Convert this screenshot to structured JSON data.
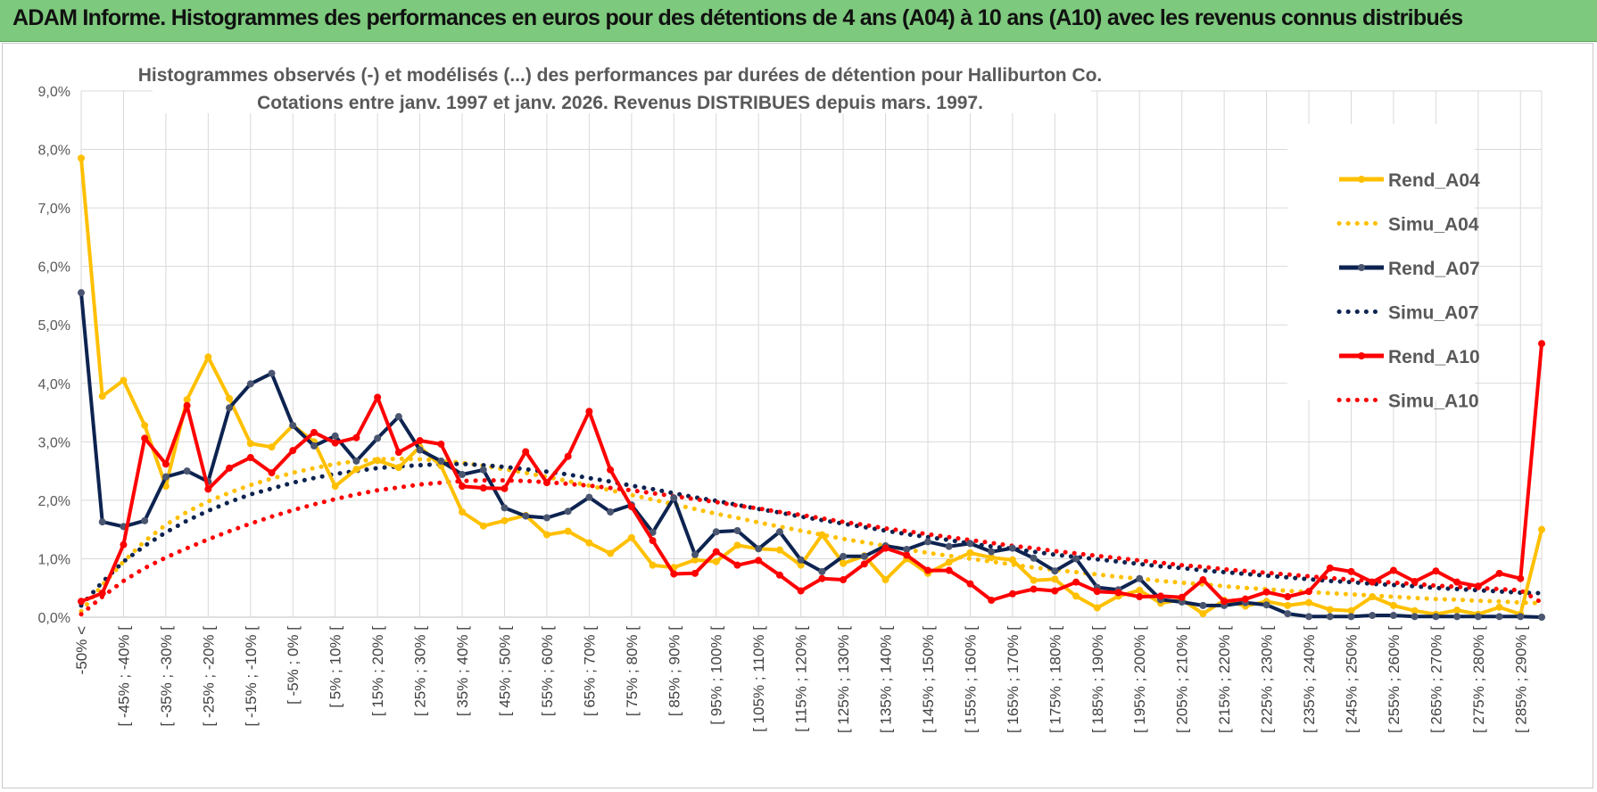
{
  "banner": {
    "title": "ADAM Informe. Histogrammes des performances en euros pour des détentions de 4 ans (A04) à 10 ans (A10) avec les revenus connus distribués"
  },
  "chart_data": {
    "type": "line",
    "title": "Histogrammes observés (-) et modélisés (...) des performances par durées de détention pour Halliburton Co.",
    "subtitle": "Cotations entre janv. 1997 et janv. 2026. Revenus DISTRIBUES depuis mars. 1997.",
    "xlabel": "",
    "ylabel": "",
    "ylim": [
      0,
      9
    ],
    "yticks": [
      "0,0%",
      "1,0%",
      "2,0%",
      "3,0%",
      "4,0%",
      "5,0%",
      "6,0%",
      "7,0%",
      "8,0%",
      "9,0%"
    ],
    "grid": true,
    "legend_position": "right",
    "category_labels": [
      "-50% <",
      "[ -45% ; -40% [",
      "[ -35% ; -30% [",
      "[ -25% ; -20% [",
      "[ -15% ; -10% [",
      "[ -5% ; 0% [",
      "[ 5% ; 10% [",
      "[ 15% ; 20% [",
      "[ 25% ; 30% [",
      "[ 35% ; 40% [",
      "[ 45% ; 50% [",
      "[ 55% ; 60% [",
      "[ 65% ; 70% [",
      "[ 75% ; 80% [",
      "[ 85% ; 90% [",
      "[ 95% ; 100% [",
      "[ 105% ; 110% [",
      "[ 115% ; 120% [",
      "[ 125% ; 130% [",
      "[ 135% ; 140% [",
      "[ 145% ; 150% [",
      "[ 155% ; 160% [",
      "[ 165% ; 170% [",
      "[ 175% ; 180% [",
      "[ 185% ; 190% [",
      "[ 195% ; 200% [",
      "[ 205% ; 210% [",
      "[ 215% ; 220% [",
      "[ 225% ; 230% [",
      "[ 235% ; 240% [",
      "[ 245% ; 250% [",
      "[ 255% ; 260% [",
      "[ 265% ; 270% [",
      "[ 275% ; 280% [",
      "[ 285% ; 290% ["
    ],
    "series": [
      {
        "name": "Rend_A04",
        "color": "#ffc000",
        "style": "solid",
        "values": [
          7.85,
          3.78,
          4.05,
          3.28,
          2.24,
          3.72,
          4.45,
          3.74,
          2.97,
          2.91,
          3.28,
          3.0,
          2.24,
          2.53,
          2.68,
          2.56,
          2.91,
          2.59,
          1.8,
          1.56,
          1.65,
          1.74,
          1.41,
          1.47,
          1.27,
          1.09,
          1.36,
          0.89,
          0.85,
          0.98,
          0.95,
          1.23,
          1.17,
          1.15,
          0.89,
          1.41,
          0.92,
          1.05,
          0.64,
          1.0,
          0.75,
          0.94,
          1.1,
          1.02,
          0.98,
          0.63,
          0.65,
          0.36,
          0.16,
          0.36,
          0.46,
          0.24,
          0.3,
          0.06,
          0.29,
          0.19,
          0.27,
          0.2,
          0.25,
          0.13,
          0.11,
          0.35,
          0.2,
          0.11,
          0.05,
          0.12,
          0.05,
          0.17,
          0.05,
          1.5
        ]
      },
      {
        "name": "Simu_A04",
        "color": "#ffc000",
        "style": "dotted",
        "values": [
          0.1,
          0.55,
          0.95,
          1.3,
          1.58,
          1.8,
          1.98,
          2.13,
          2.26,
          2.37,
          2.47,
          2.55,
          2.62,
          2.67,
          2.7,
          2.71,
          2.7,
          2.68,
          2.64,
          2.59,
          2.53,
          2.47,
          2.4,
          2.33,
          2.25,
          2.17,
          2.09,
          2.01,
          1.93,
          1.85,
          1.77,
          1.7,
          1.62,
          1.55,
          1.48,
          1.41,
          1.34,
          1.28,
          1.22,
          1.16,
          1.1,
          1.05,
          1.0,
          0.95,
          0.9,
          0.85,
          0.81,
          0.77,
          0.73,
          0.69,
          0.66,
          0.62,
          0.59,
          0.56,
          0.53,
          0.5,
          0.48,
          0.45,
          0.43,
          0.41,
          0.39,
          0.37,
          0.35,
          0.33,
          0.31,
          0.3,
          0.28,
          0.27,
          0.25,
          0.24
        ]
      },
      {
        "name": "Rend_A07",
        "color": "#0d2350",
        "style": "solid",
        "values": [
          5.55,
          1.63,
          1.55,
          1.65,
          2.4,
          2.5,
          2.32,
          3.58,
          3.99,
          4.17,
          3.28,
          2.93,
          3.1,
          2.67,
          3.06,
          3.43,
          2.86,
          2.67,
          2.44,
          2.52,
          1.87,
          1.73,
          1.7,
          1.81,
          2.05,
          1.8,
          1.92,
          1.45,
          2.04,
          1.07,
          1.46,
          1.48,
          1.17,
          1.46,
          0.98,
          0.78,
          1.04,
          1.04,
          1.22,
          1.16,
          1.29,
          1.21,
          1.26,
          1.12,
          1.18,
          1.01,
          0.79,
          1.0,
          0.51,
          0.47,
          0.66,
          0.3,
          0.26,
          0.2,
          0.2,
          0.25,
          0.21,
          0.06,
          0.01,
          0.01,
          0.01,
          0.03,
          0.03,
          0.01,
          0.01,
          0.01,
          0.01,
          0.01,
          0.01,
          0.0
        ]
      },
      {
        "name": "Simu_A07",
        "color": "#0d2350",
        "style": "dotted",
        "values": [
          0.2,
          0.6,
          0.95,
          1.22,
          1.45,
          1.65,
          1.82,
          1.97,
          2.1,
          2.2,
          2.3,
          2.38,
          2.45,
          2.5,
          2.55,
          2.58,
          2.6,
          2.62,
          2.62,
          2.6,
          2.57,
          2.53,
          2.49,
          2.44,
          2.38,
          2.32,
          2.25,
          2.19,
          2.12,
          2.05,
          1.99,
          1.92,
          1.85,
          1.79,
          1.72,
          1.66,
          1.6,
          1.54,
          1.48,
          1.42,
          1.37,
          1.32,
          1.26,
          1.21,
          1.17,
          1.12,
          1.07,
          1.03,
          0.99,
          0.95,
          0.91,
          0.87,
          0.84,
          0.8,
          0.77,
          0.74,
          0.71,
          0.68,
          0.65,
          0.62,
          0.6,
          0.57,
          0.55,
          0.53,
          0.5,
          0.48,
          0.46,
          0.44,
          0.42,
          0.41
        ]
      },
      {
        "name": "Rend_A10",
        "color": "#ff0000",
        "style": "solid",
        "values": [
          0.27,
          0.41,
          1.24,
          3.06,
          2.62,
          3.62,
          2.19,
          2.55,
          2.73,
          2.47,
          2.85,
          3.16,
          2.98,
          3.07,
          3.76,
          2.82,
          3.02,
          2.96,
          2.24,
          2.21,
          2.2,
          2.83,
          2.3,
          2.75,
          3.52,
          2.52,
          1.89,
          1.31,
          0.74,
          0.75,
          1.12,
          0.89,
          0.97,
          0.72,
          0.45,
          0.66,
          0.64,
          0.91,
          1.18,
          1.06,
          0.8,
          0.8,
          0.57,
          0.29,
          0.4,
          0.48,
          0.45,
          0.6,
          0.44,
          0.42,
          0.35,
          0.36,
          0.34,
          0.64,
          0.27,
          0.31,
          0.43,
          0.35,
          0.44,
          0.84,
          0.78,
          0.6,
          0.8,
          0.61,
          0.79,
          0.6,
          0.53,
          0.75,
          0.66,
          4.68
        ]
      },
      {
        "name": "Simu_A10",
        "color": "#ff0000",
        "style": "dotted",
        "values": [
          0.05,
          0.35,
          0.62,
          0.84,
          1.02,
          1.18,
          1.33,
          1.47,
          1.6,
          1.72,
          1.83,
          1.93,
          2.02,
          2.1,
          2.17,
          2.22,
          2.27,
          2.3,
          2.33,
          2.34,
          2.34,
          2.33,
          2.31,
          2.28,
          2.25,
          2.21,
          2.17,
          2.12,
          2.07,
          2.02,
          1.97,
          1.91,
          1.86,
          1.8,
          1.75,
          1.69,
          1.63,
          1.58,
          1.52,
          1.47,
          1.42,
          1.37,
          1.32,
          1.27,
          1.22,
          1.18,
          1.13,
          1.09,
          1.05,
          1.01,
          0.97,
          0.93,
          0.89,
          0.86,
          0.82,
          0.79,
          0.76,
          0.73,
          0.7,
          0.67,
          0.64,
          0.62,
          0.59,
          0.57,
          0.54,
          0.52,
          0.5,
          0.48,
          0.46,
          0.25
        ]
      }
    ]
  }
}
